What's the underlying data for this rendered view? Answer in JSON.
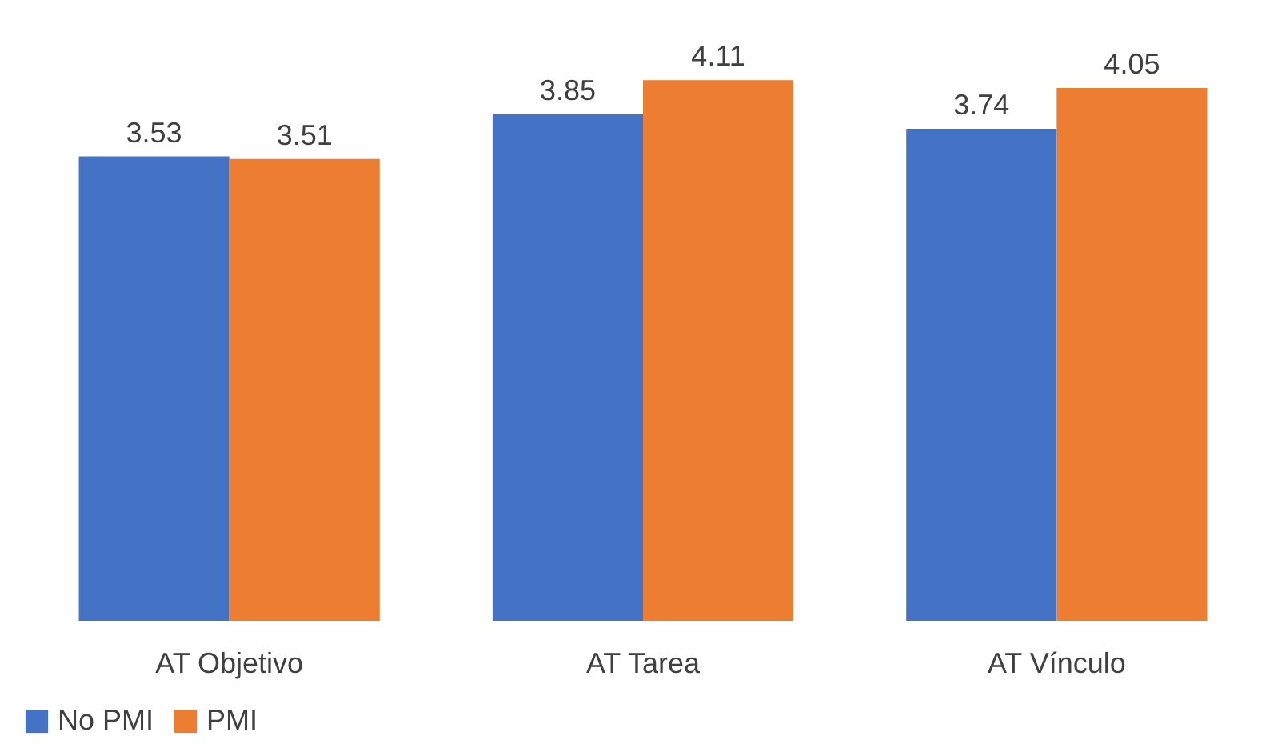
{
  "chart_data": {
    "type": "bar",
    "categories": [
      "AT Objetivo",
      "AT Tarea",
      "AT Vínculo"
    ],
    "series": [
      {
        "name": "No PMI",
        "color": "#4472c4",
        "values": [
          3.53,
          3.85,
          3.74
        ]
      },
      {
        "name": "PMI",
        "color": "#ed7d31",
        "values": [
          3.51,
          4.11,
          4.05
        ]
      }
    ],
    "data_labels": true,
    "legend": "bottom"
  }
}
